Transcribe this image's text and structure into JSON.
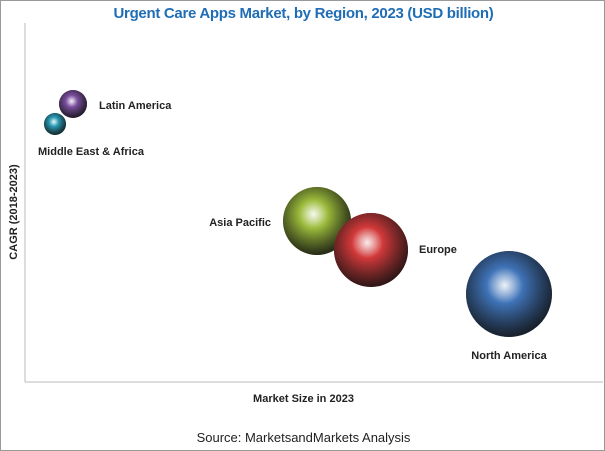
{
  "chart_data": {
    "type": "bubble",
    "title": "Urgent Care Apps Market, by Region, 2023 (USD billion)",
    "xlabel": "Market Size in 2023",
    "ylabel": "CAGR (2018-2023)",
    "grid": false,
    "legend": "none",
    "series": [
      {
        "name": "Latin America",
        "color": "#7b4fa0"
      },
      {
        "name": "Middle East & Africa",
        "color": "#2a9bb5"
      },
      {
        "name": "Asia Pacific",
        "color": "#9bbb3b"
      },
      {
        "name": "Europe",
        "color": "#d2393a"
      },
      {
        "name": "North America",
        "color": "#3f73b8"
      }
    ]
  },
  "source": "Source: MarketsandMarkets Analysis"
}
